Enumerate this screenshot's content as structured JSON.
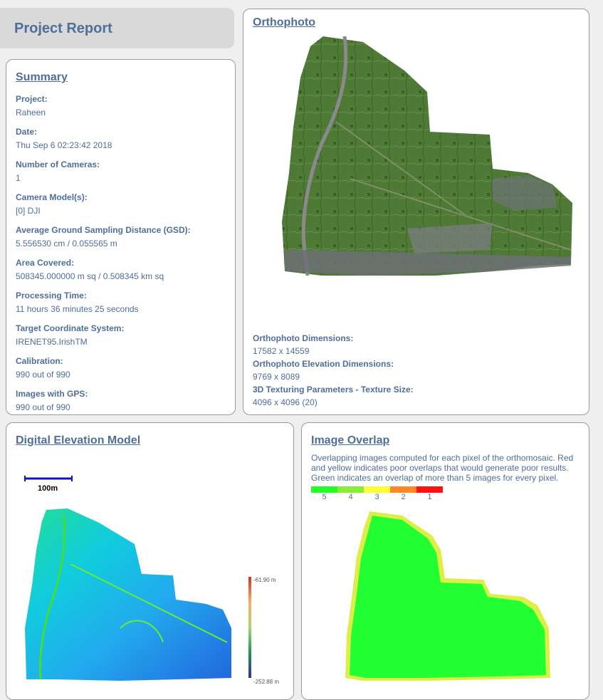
{
  "header": {
    "title": "Project Report"
  },
  "summary": {
    "heading": "Summary",
    "fields": [
      {
        "label": "Project:",
        "value": "Raheen"
      },
      {
        "label": "Date:",
        "value": "Thu Sep 6 02:23:42 2018"
      },
      {
        "label": "Number of Cameras:",
        "value": "1"
      },
      {
        "label": "Camera Model(s):",
        "value": "[0] DJI"
      },
      {
        "label": "Average Ground Sampling Distance (GSD):",
        "value": "5.556530 cm / 0.055565 m"
      },
      {
        "label": "Area Covered:",
        "value": "508345.000000 m sq / 0.508345 km sq"
      },
      {
        "label": "Processing Time:",
        "value": "11 hours 36 minutes 25 seconds"
      },
      {
        "label": "Target Coordinate System:",
        "value": "IRENET95.IrishTM"
      },
      {
        "label": "Calibration:",
        "value": "990  out of  990"
      },
      {
        "label": "Images with GPS:",
        "value": "990  out of  990"
      }
    ]
  },
  "orthophoto": {
    "heading": "Orthophoto",
    "fields": [
      {
        "label": "Orthophoto Dimensions:",
        "value": "17582 x 14559"
      },
      {
        "label": "Orthophoto Elevation Dimensions:",
        "value": "9769 x 8089"
      },
      {
        "label": "3D Texturing Parameters - Texture Size:",
        "value": "4096 x 4096 (20)"
      }
    ]
  },
  "dem": {
    "heading": "Digital Elevation Model",
    "scale_label": "100m",
    "colorbar_max": "-61.90 m",
    "colorbar_min": "-252.88 m"
  },
  "overlap": {
    "heading": "Image Overlap",
    "description": "Overlapping images computed for each pixel of the orthomosaic. Red and yellow indicates poor overlaps that would generate poor results. Green indicates an overlap of more than 5 images for every pixel.",
    "legend": [
      {
        "label": "5",
        "color": "#22ff22"
      },
      {
        "label": "4",
        "color": "#88ee33"
      },
      {
        "label": "3",
        "color": "#ffff33"
      },
      {
        "label": "2",
        "color": "#ff8822"
      },
      {
        "label": "1",
        "color": "#ff1111"
      }
    ]
  }
}
